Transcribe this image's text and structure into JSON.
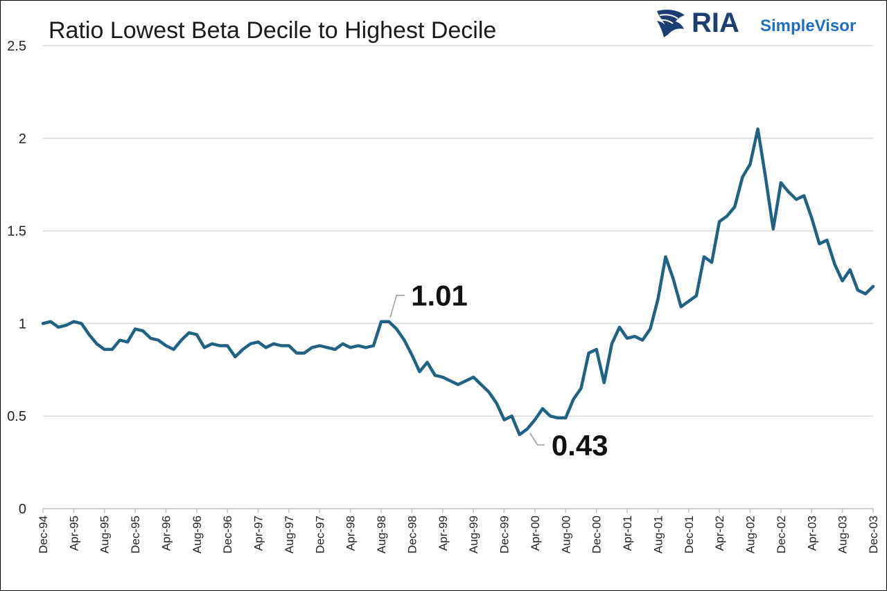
{
  "chart_data": {
    "type": "line",
    "title": "Ratio Lowest Beta Decile to Highest Decile",
    "xlabel": "",
    "ylabel": "",
    "ylim": [
      0,
      2.5
    ],
    "y_ticks": [
      "0",
      "0.5",
      "1",
      "1.5",
      "2",
      "2.5"
    ],
    "grid": "horizontal",
    "legend": "none",
    "line_color": "#1f6284",
    "x_ticks": [
      "Dec-94",
      "Apr-95",
      "Aug-95",
      "Dec-95",
      "Apr-96",
      "Aug-96",
      "Dec-96",
      "Apr-97",
      "Aug-97",
      "Dec-97",
      "Apr-98",
      "Aug-98",
      "Dec-98",
      "Apr-99",
      "Aug-99",
      "Dec-99",
      "Apr-00",
      "Aug-00",
      "Dec-00",
      "Apr-01",
      "Aug-01",
      "Dec-01",
      "Apr-02",
      "Aug-02",
      "Dec-02",
      "Apr-03",
      "Aug-03",
      "Dec-03"
    ],
    "series": [
      {
        "name": "",
        "values": [
          1.0,
          1.01,
          0.98,
          0.99,
          1.01,
          1.0,
          0.94,
          0.89,
          0.86,
          0.86,
          0.91,
          0.9,
          0.97,
          0.96,
          0.92,
          0.91,
          0.88,
          0.86,
          0.91,
          0.95,
          0.94,
          0.87,
          0.89,
          0.88,
          0.88,
          0.82,
          0.86,
          0.89,
          0.9,
          0.87,
          0.89,
          0.88,
          0.88,
          0.84,
          0.84,
          0.87,
          0.88,
          0.87,
          0.86,
          0.89,
          0.87,
          0.88,
          0.87,
          0.88,
          1.01,
          1.01,
          0.97,
          0.91,
          0.83,
          0.74,
          0.79,
          0.72,
          0.71,
          0.69,
          0.67,
          0.69,
          0.71,
          0.67,
          0.63,
          0.57,
          0.48,
          0.5,
          0.4,
          0.43,
          0.48,
          0.54,
          0.5,
          0.49,
          0.49,
          0.59,
          0.65,
          0.84,
          0.86,
          0.68,
          0.89,
          0.98,
          0.92,
          0.93,
          0.91,
          0.97,
          1.13,
          1.36,
          1.24,
          1.09,
          1.12,
          1.15,
          1.36,
          1.33,
          1.55,
          1.58,
          1.63,
          1.79,
          1.86,
          2.05,
          1.79,
          1.51,
          1.76,
          1.71,
          1.67,
          1.69,
          1.57,
          1.43,
          1.45,
          1.32,
          1.23,
          1.29,
          1.18,
          1.16,
          1.2
        ]
      }
    ],
    "annotations": [
      {
        "text": "1.01",
        "point_index": 45
      },
      {
        "text": "0.43",
        "point_index": 63
      }
    ]
  },
  "logo": {
    "brand_ria": "RIA",
    "brand_simplevisor": "SimpleVisor",
    "brand_color": "#1b3f73",
    "sv_color": "#1e6fc4",
    "icon": "eagle-head-icon"
  }
}
